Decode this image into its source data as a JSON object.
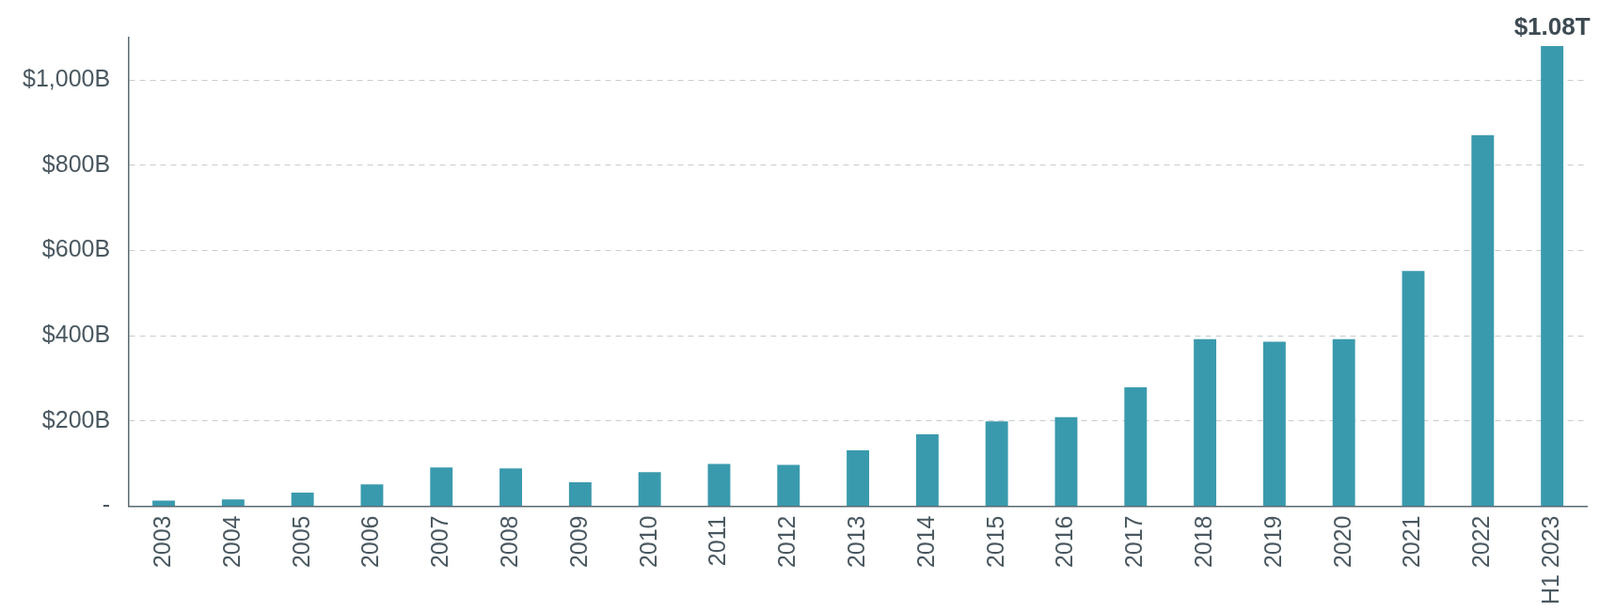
{
  "chart_data": {
    "type": "bar",
    "categories": [
      "2003",
      "2004",
      "2005",
      "2006",
      "2007",
      "2008",
      "2009",
      "2010",
      "2011",
      "2012",
      "2013",
      "2014",
      "2015",
      "2016",
      "2017",
      "2018",
      "2019",
      "2020",
      "2021",
      "2022",
      "H1 2023"
    ],
    "values": [
      13,
      16,
      32,
      51,
      91,
      89,
      56,
      80,
      99,
      97,
      131,
      169,
      199,
      209,
      279,
      392,
      386,
      392,
      552,
      871,
      1080
    ],
    "value_labels": [
      null,
      null,
      null,
      null,
      null,
      null,
      null,
      null,
      null,
      null,
      null,
      null,
      null,
      null,
      null,
      null,
      null,
      null,
      null,
      null,
      "$1.08T"
    ],
    "color": "#3a9aad",
    "ylim": [
      0,
      1100
    ],
    "yticks": [
      {
        "value": 0,
        "label": "-"
      },
      {
        "value": 200,
        "label": "$200B"
      },
      {
        "value": 400,
        "label": "$400B"
      },
      {
        "value": 600,
        "label": "$600B"
      },
      {
        "value": 800,
        "label": "$800B"
      },
      {
        "value": 1000,
        "label": "$1,000B"
      }
    ],
    "grid": true
  }
}
